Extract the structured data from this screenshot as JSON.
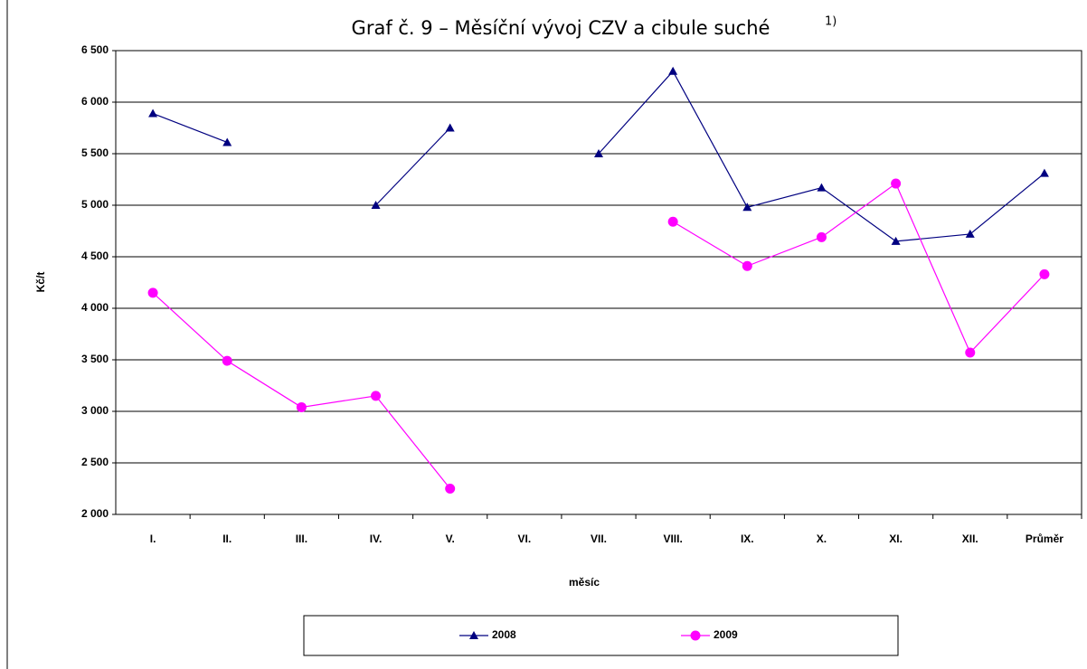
{
  "chart_data": {
    "type": "line",
    "title": "Graf č. 9 – Měsíční vývoj CZV a cibule suché",
    "title_note": "1)",
    "x_label": "měsíc",
    "y_label": "Kč/t",
    "categories": [
      "I.",
      "II.",
      "III.",
      "IV.",
      "V.",
      "VI.",
      "VII.",
      "VIII.",
      "IX.",
      "X.",
      "XI.",
      "XII.",
      "Průměr"
    ],
    "series": [
      {
        "name": "2008",
        "color": "#000080",
        "marker": "triangle",
        "values": [
          5890,
          5610,
          null,
          5000,
          5750,
          null,
          5500,
          6300,
          4980,
          5170,
          4650,
          4720,
          5310
        ]
      },
      {
        "name": "2009",
        "color": "#ff00ff",
        "marker": "circle",
        "values": [
          4150,
          3490,
          3040,
          3150,
          2250,
          null,
          null,
          4840,
          4410,
          4690,
          5210,
          3570,
          4330
        ]
      }
    ],
    "ylim": [
      2000,
      6500
    ],
    "yticks": [
      {
        "value": 2000,
        "label": "2 000"
      },
      {
        "value": 2500,
        "label": "2 500"
      },
      {
        "value": 3000,
        "label": "3 000"
      },
      {
        "value": 3500,
        "label": "3 500"
      },
      {
        "value": 4000,
        "label": "4 000"
      },
      {
        "value": 4500,
        "label": "4 500"
      },
      {
        "value": 5000,
        "label": "5 000"
      },
      {
        "value": 5500,
        "label": "5 500"
      },
      {
        "value": 6000,
        "label": "6 000"
      },
      {
        "value": 6500,
        "label": "6 500"
      }
    ],
    "grid": true,
    "legend": "bottom"
  }
}
